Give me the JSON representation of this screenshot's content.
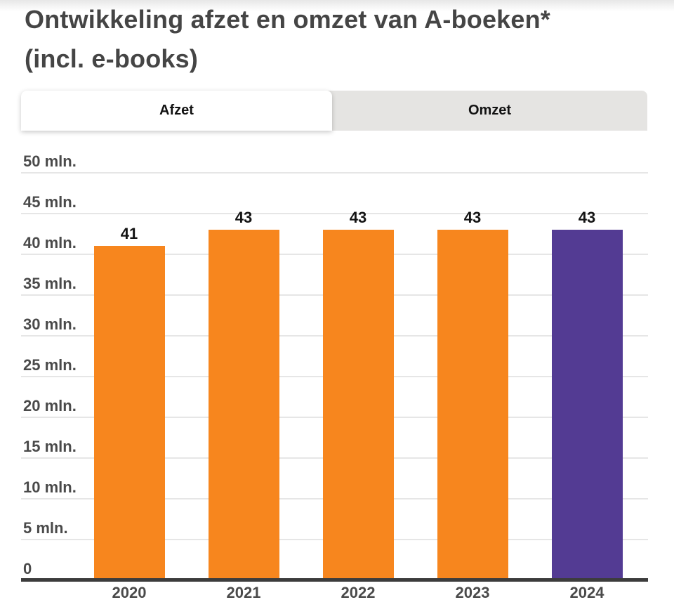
{
  "header": {
    "title_line1": "Ontwikkeling afzet en omzet van A-boeken*",
    "title_line2": "(incl. e-books)"
  },
  "tabs": [
    {
      "label": "Afzet",
      "active": true
    },
    {
      "label": "Omzet",
      "active": false
    }
  ],
  "chart_data": {
    "type": "bar",
    "title": "Ontwikkeling afzet en omzet van A-boeken* (incl. e-books)",
    "selected_tab": "Afzet",
    "categories": [
      "2020",
      "2021",
      "2022",
      "2023",
      "2024"
    ],
    "values": [
      41,
      43,
      43,
      43,
      43
    ],
    "value_labels": [
      "41",
      "43",
      "43",
      "43",
      "43"
    ],
    "bar_colors": [
      "#F7861E",
      "#F7861E",
      "#F7861E",
      "#F7861E",
      "#533B93"
    ],
    "ylim": [
      0,
      50
    ],
    "ytick_step": 5,
    "yticks": [
      {
        "value": 0,
        "label": "0"
      },
      {
        "value": 5,
        "label": "5 mln."
      },
      {
        "value": 10,
        "label": "10 mln."
      },
      {
        "value": 15,
        "label": "15 mln."
      },
      {
        "value": 20,
        "label": "20 mln."
      },
      {
        "value": 25,
        "label": "25 mln."
      },
      {
        "value": 30,
        "label": "30 mln."
      },
      {
        "value": 35,
        "label": "35 mln."
      },
      {
        "value": 40,
        "label": "40 mln."
      },
      {
        "value": 45,
        "label": "45 mln."
      },
      {
        "value": 50,
        "label": "50 mln."
      }
    ],
    "grid": true,
    "legend": false,
    "xlabel": "",
    "ylabel": ""
  },
  "colors": {
    "bar_default": "#F7861E",
    "bar_highlight": "#533B93",
    "axis_line": "#3C3C3C",
    "gridline": "#E6E6E6",
    "tab_active_bg": "#FFFFFF",
    "tab_inactive_bg": "#E5E4E2",
    "title_text": "#454545",
    "axis_text": "#4A4A4A",
    "value_text": "#141414"
  }
}
